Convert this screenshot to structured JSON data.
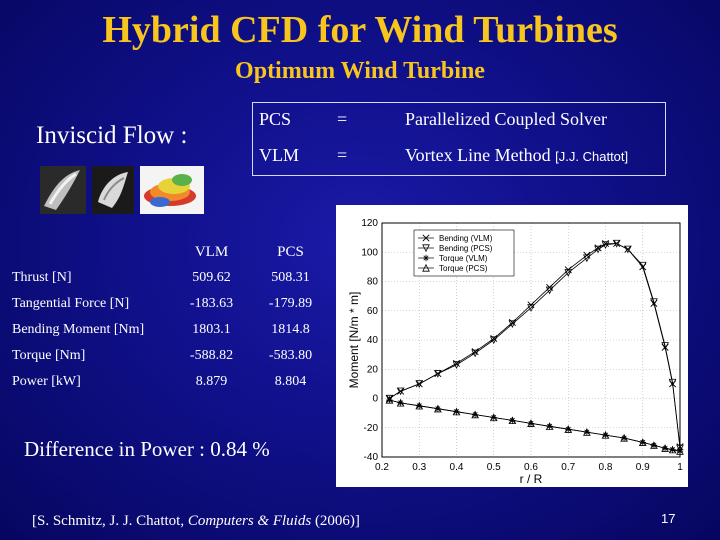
{
  "slide": {
    "title": "Hybrid CFD for Wind Turbines",
    "subtitle": "Optimum Wind Turbine",
    "inviscid_label": "Inviscid Flow :",
    "definitions": [
      {
        "abbr": "PCS",
        "eq": "=",
        "meaning": "Parallelized Coupled Solver",
        "cite": ""
      },
      {
        "abbr": "VLM",
        "eq": "=",
        "meaning": "Vortex Line Method",
        "cite": "[J.J. Chattot]"
      }
    ],
    "table": {
      "headers": [
        "",
        "VLM",
        "PCS"
      ],
      "rows": [
        {
          "label": "Thrust [N]",
          "vlm": "509.62",
          "pcs": "508.31"
        },
        {
          "label": "Tangential Force [N]",
          "vlm": "-183.63",
          "pcs": "-179.89"
        },
        {
          "label": "Bending Moment [Nm]",
          "vlm": "1803.1",
          "pcs": "1814.8"
        },
        {
          "label": "Torque [Nm]",
          "vlm": "-588.82",
          "pcs": "-583.80"
        },
        {
          "label": "Power [kW]",
          "vlm": "8.879",
          "pcs": "8.804"
        }
      ]
    },
    "difference": "Difference in Power : 0.84 %",
    "citation": {
      "prefix": "[S. Schmitz, J. J. Chattot, ",
      "journal": "Computers & Fluids",
      "suffix": " (2006)]"
    },
    "slide_number": "17",
    "colors": {
      "title": "#f7c51e",
      "background": "#10108a"
    }
  },
  "chart_data": {
    "type": "line",
    "xlabel": "r / R",
    "ylabel": "Moment [N/m * m]",
    "xlim": [
      0.2,
      1.0
    ],
    "ylim": [
      -40,
      120
    ],
    "xticks": [
      "0.2",
      "0.3",
      "0.4",
      "0.5",
      "0.6",
      "0.7",
      "0.8",
      "0.9",
      "1"
    ],
    "yticks": [
      "-40",
      "-20",
      "0",
      "20",
      "40",
      "60",
      "80",
      "100",
      "120"
    ],
    "grid": true,
    "legend": "top-left",
    "series": [
      {
        "name": "Bending (VLM)",
        "marker": "x",
        "x": [
          0.22,
          0.25,
          0.3,
          0.35,
          0.4,
          0.45,
          0.5,
          0.55,
          0.6,
          0.65,
          0.7,
          0.75,
          0.78,
          0.8,
          0.83,
          0.86,
          0.9,
          0.93,
          0.96,
          0.98,
          1.0
        ],
        "y": [
          0,
          5,
          10,
          17,
          24,
          32,
          41,
          52,
          64,
          76,
          88,
          98,
          103,
          106,
          106,
          102,
          90,
          65,
          35,
          10,
          -33
        ]
      },
      {
        "name": "Bending (PCS)",
        "marker": "triangle-down",
        "x": [
          0.22,
          0.25,
          0.3,
          0.35,
          0.4,
          0.45,
          0.5,
          0.55,
          0.6,
          0.65,
          0.7,
          0.75,
          0.78,
          0.8,
          0.83,
          0.86,
          0.9,
          0.93,
          0.96,
          0.98,
          1.0
        ],
        "y": [
          0,
          5,
          10,
          17,
          23,
          31,
          40,
          51,
          62,
          74,
          86,
          96,
          102,
          105,
          106,
          102,
          91,
          66,
          36,
          11,
          -34
        ]
      },
      {
        "name": "Torque (VLM)",
        "marker": "star",
        "x": [
          0.22,
          0.25,
          0.3,
          0.35,
          0.4,
          0.45,
          0.5,
          0.55,
          0.6,
          0.65,
          0.7,
          0.75,
          0.8,
          0.85,
          0.9,
          0.93,
          0.96,
          0.98,
          1.0
        ],
        "y": [
          -1,
          -3,
          -5,
          -7,
          -9,
          -11,
          -13,
          -15,
          -17,
          -19,
          -21,
          -23,
          -25,
          -27,
          -30,
          -32,
          -34,
          -35,
          -36
        ]
      },
      {
        "name": "Torque (PCS)",
        "marker": "triangle-up",
        "x": [
          0.22,
          0.25,
          0.3,
          0.35,
          0.4,
          0.45,
          0.5,
          0.55,
          0.6,
          0.65,
          0.7,
          0.75,
          0.8,
          0.85,
          0.9,
          0.93,
          0.96,
          0.98,
          1.0
        ],
        "y": [
          -1,
          -3,
          -5,
          -7,
          -9,
          -11,
          -13,
          -15,
          -17,
          -19,
          -21,
          -23,
          -25,
          -27,
          -30,
          -32,
          -34,
          -35,
          -36
        ]
      }
    ]
  }
}
